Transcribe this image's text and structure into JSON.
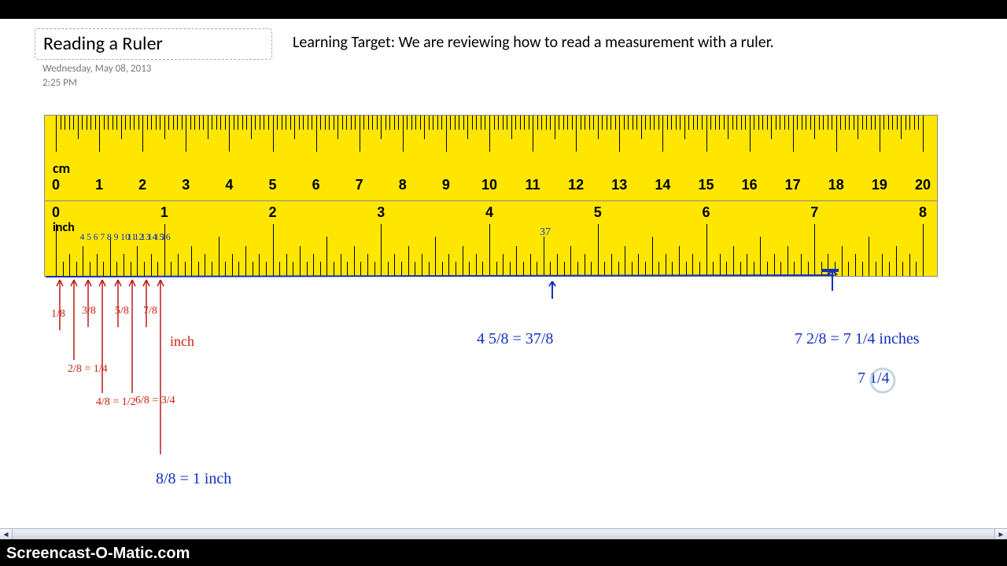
{
  "header": {
    "title": "Reading a Ruler",
    "learning_target": "Learning Target:  We are reviewing how to read a measurement with a ruler.",
    "date": "Wednesday, May 08, 2013",
    "time": "2:25 PM"
  },
  "watermark": "Screencast-O-Matic.com",
  "ruler": {
    "background_color": "#ffe600",
    "cm": {
      "label": "cm",
      "start": 0,
      "end": 20,
      "minor_per_major": 10
    },
    "inch": {
      "label": "inch",
      "start": 0,
      "end": 8,
      "minor_per_major": 16
    }
  },
  "handwriting": {
    "tick_counts_blue": [
      "4",
      "5",
      "6",
      "7",
      "8",
      "9",
      "10",
      "11",
      "12",
      "13",
      "14",
      "15",
      "16"
    ],
    "thirtyseven": "37",
    "red_fractions": [
      "1/8",
      "3/8",
      "5/8",
      "7/8"
    ],
    "red_inch": "inch",
    "red_eq1": "2/8 = 1/4",
    "red_eq2": "4/8 = 1/2",
    "red_eq3": "6/8 = 3/4",
    "blue_eq_mid": "4 5/8 = 37/8",
    "blue_eq_right": "7 2/8 = 7 1/4 inches",
    "blue_eq_right2": "7 1/4",
    "blue_eq_bottom": "8/8 = 1 inch"
  },
  "colors": {
    "red_ink": "#c21818",
    "blue_ink": "#1030c0",
    "black_bar": "#000000",
    "scrollbar_bg": "#d6dde9"
  }
}
